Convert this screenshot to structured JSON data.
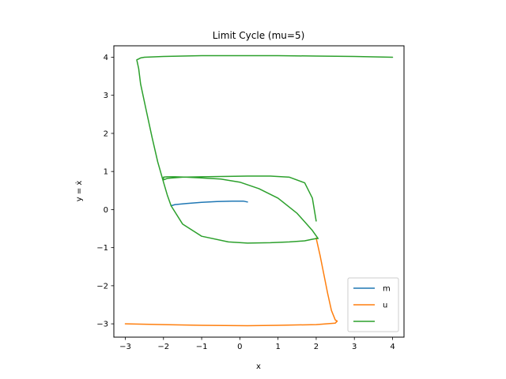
{
  "chart_data": {
    "type": "line",
    "title": "Limit Cycle (mu=5)",
    "xlabel": "x",
    "ylabel": "y = ẋ",
    "xlim": [
      -3.3,
      4.3
    ],
    "ylim": [
      -3.35,
      4.3
    ],
    "xticks": [
      -3,
      -2,
      -1,
      0,
      1,
      2,
      3,
      4
    ],
    "yticks": [
      -3,
      -2,
      -1,
      0,
      1,
      2,
      3,
      4
    ],
    "grid": false,
    "legend": "lower-right",
    "series": [
      {
        "name": "m",
        "color": "#1f77b4",
        "x": [
          -1.8,
          -1.7,
          -1.4,
          -1.0,
          -0.6,
          -0.2,
          0.1,
          0.2
        ],
        "y": [
          0.1,
          0.13,
          0.16,
          0.19,
          0.21,
          0.22,
          0.22,
          0.2
        ]
      },
      {
        "name": "u",
        "color": "#ff7f0e",
        "x": [
          2.0,
          2.1,
          2.2,
          2.3,
          2.4,
          2.5,
          2.55,
          2.5,
          2.0,
          1.0,
          0.2,
          -1.0,
          -2.0,
          -3.0
        ],
        "y": [
          -0.75,
          -1.2,
          -1.7,
          -2.2,
          -2.65,
          -2.9,
          -2.93,
          -2.98,
          -3.02,
          -3.04,
          -3.05,
          -3.04,
          -3.02,
          -3.0
        ]
      },
      {
        "name": "",
        "color": "#2ca02c",
        "x": [
          4.0,
          3.0,
          2.0,
          1.0,
          0.0,
          -1.0,
          -2.0,
          -2.5,
          -2.6,
          -2.7,
          -2.65,
          -2.6,
          -2.45,
          -2.3,
          -2.15,
          -2.0,
          -1.9,
          -1.8,
          -1.5,
          -1.0,
          -0.3,
          0.2,
          0.8,
          1.3,
          1.7,
          1.9,
          2.0,
          2.05,
          1.9,
          1.5,
          1.0,
          0.5,
          0.0,
          -0.5,
          -1.0,
          -1.4,
          -1.7,
          -1.9,
          -2.0,
          -2.0,
          -1.9,
          -1.5,
          -1.0,
          -0.3,
          0.2,
          0.8,
          1.3,
          1.7,
          1.9,
          2.0
        ],
        "y": [
          4.0,
          4.02,
          4.03,
          4.04,
          4.04,
          4.04,
          4.02,
          4.0,
          3.98,
          3.93,
          3.7,
          3.3,
          2.6,
          1.9,
          1.25,
          0.72,
          0.38,
          0.1,
          -0.38,
          -0.7,
          -0.85,
          -0.88,
          -0.87,
          -0.85,
          -0.82,
          -0.78,
          -0.76,
          -0.76,
          -0.55,
          -0.1,
          0.3,
          0.55,
          0.72,
          0.8,
          0.83,
          0.85,
          0.86,
          0.86,
          0.85,
          0.78,
          0.82,
          0.85,
          0.86,
          0.87,
          0.88,
          0.88,
          0.85,
          0.7,
          0.3,
          -0.3
        ]
      }
    ]
  }
}
